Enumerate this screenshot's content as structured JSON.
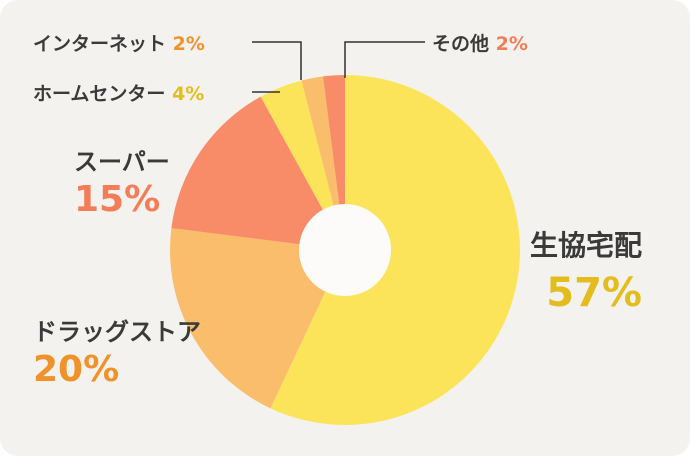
{
  "chart_data": {
    "type": "pie",
    "donut": true,
    "start": "top",
    "direction": "clockwise",
    "slices": [
      {
        "label": "生協宅配",
        "value": 57,
        "pct_text": "57%",
        "color": "#fbe45a",
        "label_color": "#e3bc1e"
      },
      {
        "label": "ドラッグストア",
        "value": 20,
        "pct_text": "20%",
        "color": "#f9bd6b",
        "label_color": "#f0922a"
      },
      {
        "label": "スーパー",
        "value": 15,
        "pct_text": "15%",
        "color": "#f98c68",
        "label_color": "#f47d58"
      },
      {
        "label": "ホームセンター",
        "value": 4,
        "pct_text": "4%",
        "color": "#fbe45a",
        "label_color": "#e3bc1e"
      },
      {
        "label": "インターネット",
        "value": 2,
        "pct_text": "2%",
        "color": "#f9bd6b",
        "label_color": "#f0922a"
      },
      {
        "label": "その他",
        "value": 2,
        "pct_text": "2%",
        "color": "#f98c68",
        "label_color": "#f47d58"
      }
    ],
    "hole_color": "#fcfbf9",
    "background": "#f3f2ef"
  }
}
